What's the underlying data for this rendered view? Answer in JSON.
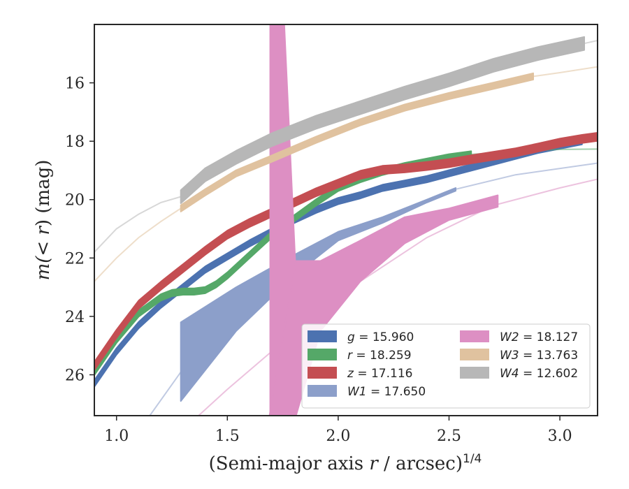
{
  "chart_data": {
    "type": "line",
    "xlabel_text": "(Semi-major axis ",
    "xlabel_var": "r",
    "xlabel_tail": " / arcsec)",
    "xlabel_exp": "1/4",
    "ylabel_pre": "m(< ",
    "ylabel_var": "r",
    "ylabel_post": ") (mag)",
    "xlim": [
      0.9,
      3.17
    ],
    "ylim": [
      27.4,
      14.0
    ],
    "y_inverted": true,
    "xticks": [
      1.0,
      1.5,
      2.0,
      2.5,
      3.0
    ],
    "xtick_labels": [
      "1.0",
      "1.5",
      "2.0",
      "2.5",
      "3.0"
    ],
    "yticks": [
      16,
      18,
      20,
      22,
      24,
      26
    ],
    "ytick_labels": [
      "16",
      "18",
      "20",
      "22",
      "24",
      "26"
    ],
    "grid": false,
    "legend_placement": "lower-right",
    "series": [
      {
        "name": "g = 15.960",
        "color": "#4c72b0",
        "x": [
          0.9,
          1.0,
          1.1,
          1.2,
          1.3,
          1.4,
          1.5,
          1.6,
          1.7,
          1.8,
          1.9,
          2.0,
          2.1,
          2.2,
          2.3,
          2.4,
          2.5,
          2.6,
          2.7,
          2.8,
          2.9,
          3.0,
          3.1
        ],
        "y": [
          26.3,
          25.2,
          24.3,
          23.6,
          23.0,
          22.4,
          21.95,
          21.5,
          21.1,
          20.7,
          20.35,
          20.05,
          19.85,
          19.6,
          19.45,
          19.3,
          19.1,
          18.9,
          18.7,
          18.5,
          18.3,
          18.15,
          18.0
        ],
        "band": 0.22,
        "ext_x": [
          3.1,
          3.17
        ],
        "ext_y": [
          18.0,
          17.95
        ]
      },
      {
        "name": "r = 18.259",
        "color": "#55a868",
        "x": [
          0.9,
          1.0,
          1.1,
          1.2,
          1.25,
          1.3,
          1.35,
          1.4,
          1.45,
          1.5,
          1.6,
          1.7,
          1.8,
          1.9,
          2.0,
          2.1,
          2.2,
          2.3,
          2.4,
          2.5,
          2.6
        ],
        "y": [
          25.9,
          24.8,
          23.9,
          23.35,
          23.2,
          23.15,
          23.15,
          23.1,
          22.9,
          22.6,
          21.9,
          21.2,
          20.65,
          20.1,
          19.6,
          19.3,
          19.05,
          18.85,
          18.7,
          18.55,
          18.45
        ],
        "band": 0.22,
        "ext_x": [
          2.6,
          2.8,
          3.0,
          3.17
        ],
        "ext_y": [
          18.45,
          18.35,
          18.28,
          18.27
        ]
      },
      {
        "name": "z = 17.116",
        "color": "#c44e52",
        "x": [
          0.9,
          1.0,
          1.1,
          1.2,
          1.3,
          1.4,
          1.5,
          1.6,
          1.7,
          1.8,
          1.9,
          2.0,
          2.1,
          2.2,
          2.3,
          2.4,
          2.5,
          2.6,
          2.7,
          2.8,
          2.9,
          3.0,
          3.1,
          3.17
        ],
        "y": [
          25.7,
          24.6,
          23.6,
          22.95,
          22.35,
          21.75,
          21.2,
          20.8,
          20.45,
          20.1,
          19.75,
          19.45,
          19.15,
          18.98,
          18.93,
          18.85,
          18.75,
          18.62,
          18.5,
          18.38,
          18.22,
          18.05,
          17.92,
          17.85
        ],
        "band": 0.28,
        "ext_x": [
          3.17
        ],
        "ext_y": [
          17.85
        ]
      },
      {
        "name": "W1 = 17.650",
        "color": "#8c9fca",
        "x": [
          1.29,
          1.54,
          1.8,
          2.0,
          2.2,
          2.4,
          2.53
        ],
        "y": [
          24.3,
          23.1,
          22.0,
          21.25,
          20.65,
          20.0,
          19.65
        ],
        "y_upper": [
          24.2,
          23.0,
          21.9,
          21.1,
          20.6,
          20.0,
          19.6
        ],
        "y_lower": [
          26.9,
          24.5,
          22.6,
          21.4,
          20.8,
          20.1,
          19.7
        ],
        "band": 0.25,
        "ext_x": [
          1.15,
          1.3,
          1.5,
          1.8,
          2.1,
          2.5,
          2.8,
          3.17
        ],
        "ext_y": [
          27.4,
          25.8,
          24.0,
          22.2,
          20.95,
          19.7,
          19.15,
          18.75
        ]
      },
      {
        "name": "W2 = 18.127",
        "color": "#dd8fc3",
        "x": [
          1.69,
          1.81,
          1.92,
          2.1,
          2.3,
          2.5,
          2.72
        ],
        "y_upper": [
          27.4,
          22.1,
          22.1,
          21.4,
          20.6,
          20.3,
          19.85
        ],
        "y_lower": [
          27.4,
          27.4,
          24.5,
          22.8,
          21.5,
          20.7,
          20.25
        ],
        "band": 0.25,
        "spike_x": [
          1.69,
          1.81
        ],
        "spike_top": [
          14.0,
          14.0
        ],
        "spike_bottom": [
          27.4,
          27.4
        ],
        "ext_x": [
          1.37,
          1.5,
          1.7,
          1.9,
          2.1,
          2.4,
          2.7,
          3.0,
          3.17
        ],
        "ext_y": [
          27.4,
          26.5,
          25.2,
          23.9,
          22.8,
          21.3,
          20.2,
          19.6,
          19.3
        ]
      },
      {
        "name": "W3 = 13.763",
        "color": "#e0c29f",
        "x": [
          1.29,
          1.4,
          1.54,
          1.7,
          1.9,
          2.1,
          2.3,
          2.5,
          2.7,
          2.88
        ],
        "y": [
          20.3,
          19.75,
          19.1,
          18.6,
          17.95,
          17.35,
          16.85,
          16.45,
          16.1,
          15.78
        ],
        "band": 0.22,
        "ext_x": [
          0.9,
          1.0,
          1.1,
          1.2,
          1.29
        ],
        "ext_y": [
          22.8,
          22.0,
          21.3,
          20.75,
          20.3
        ],
        "ext2_x": [
          2.88,
          3.0,
          3.17
        ],
        "ext2_y": [
          15.78,
          15.65,
          15.45
        ]
      },
      {
        "name": "W4 = 12.602",
        "color": "#b7b7b7",
        "x": [
          1.29,
          1.4,
          1.54,
          1.7,
          1.9,
          2.1,
          2.3,
          2.5,
          2.7,
          2.9,
          3.11
        ],
        "y": [
          19.9,
          19.15,
          18.55,
          17.95,
          17.35,
          16.85,
          16.35,
          15.9,
          15.4,
          15.0,
          14.65
        ],
        "band": 0.45,
        "ext_x": [
          0.9,
          1.0,
          1.1,
          1.2,
          1.29
        ],
        "ext_y": [
          21.8,
          21.0,
          20.5,
          20.1,
          19.9
        ],
        "ext2_x": [
          3.11,
          3.17
        ],
        "ext2_y": [
          14.65,
          14.55
        ]
      }
    ]
  },
  "legend": {
    "col1": [
      {
        "var": "g",
        "value": " = 15.960",
        "color": "#4c72b0"
      },
      {
        "var": "r",
        "value": " = 18.259",
        "color": "#55a868"
      },
      {
        "var": "z",
        "value": " = 17.116",
        "color": "#c44e52"
      },
      {
        "var": "W1",
        "value": " = 17.650",
        "color": "#8c9fca"
      }
    ],
    "col2": [
      {
        "var": "W2",
        "value": " = 18.127",
        "color": "#dd8fc3"
      },
      {
        "var": "W3",
        "value": " = 13.763",
        "color": "#e0c29f"
      },
      {
        "var": "W4",
        "value": " = 12.602",
        "color": "#b7b7b7"
      }
    ]
  }
}
